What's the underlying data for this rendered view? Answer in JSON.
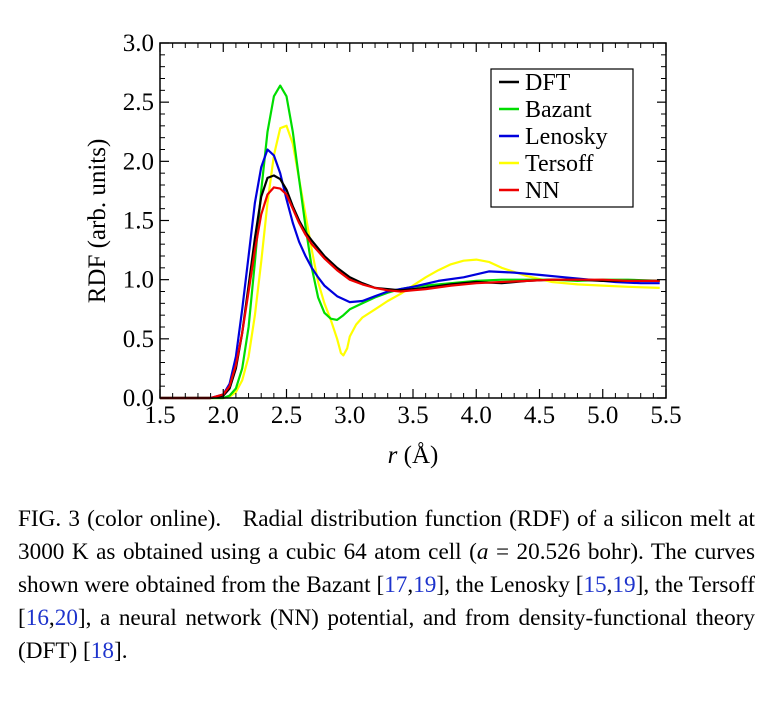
{
  "chart_data": {
    "type": "line",
    "xlabel_var": "r",
    "xlabel_unit": "(Å)",
    "ylabel": "RDF (arb. units)",
    "xlim": [
      1.5,
      5.5
    ],
    "ylim": [
      0.0,
      3.0
    ],
    "xticks": [
      "1.5",
      "2.0",
      "2.5",
      "3.0",
      "3.5",
      "4.0",
      "4.5",
      "5.0",
      "5.5"
    ],
    "yticks": [
      "0.0",
      "0.5",
      "1.0",
      "1.5",
      "2.0",
      "2.5",
      "3.0"
    ],
    "grid": false,
    "legend_position": "top-right",
    "series": [
      {
        "name": "DFT",
        "color": "#000000",
        "x": [
          1.5,
          1.9,
          2.0,
          2.05,
          2.1,
          2.15,
          2.2,
          2.25,
          2.3,
          2.35,
          2.4,
          2.45,
          2.5,
          2.55,
          2.6,
          2.65,
          2.7,
          2.8,
          2.9,
          3.0,
          3.1,
          3.2,
          3.3,
          3.4,
          3.5,
          3.6,
          3.8,
          4.0,
          4.2,
          4.4,
          4.6,
          4.8,
          5.0,
          5.2,
          5.45
        ],
        "y": [
          0.0,
          0.0,
          0.02,
          0.08,
          0.25,
          0.55,
          0.95,
          1.35,
          1.7,
          1.86,
          1.88,
          1.85,
          1.76,
          1.62,
          1.5,
          1.4,
          1.33,
          1.2,
          1.1,
          1.02,
          0.97,
          0.93,
          0.92,
          0.91,
          0.92,
          0.93,
          0.96,
          0.98,
          0.97,
          0.99,
          1.0,
          1.0,
          0.99,
          0.99,
          0.99
        ]
      },
      {
        "name": "Bazant",
        "color": "#00dd00",
        "x": [
          1.5,
          2.0,
          2.05,
          2.1,
          2.15,
          2.2,
          2.25,
          2.3,
          2.35,
          2.4,
          2.45,
          2.5,
          2.55,
          2.6,
          2.65,
          2.7,
          2.75,
          2.8,
          2.85,
          2.9,
          2.95,
          3.0,
          3.1,
          3.2,
          3.3,
          3.4,
          3.5,
          3.6,
          3.8,
          4.0,
          4.2,
          4.4,
          4.6,
          4.8,
          5.0,
          5.2,
          5.45
        ],
        "y": [
          0.0,
          0.0,
          0.02,
          0.08,
          0.25,
          0.6,
          1.15,
          1.75,
          2.25,
          2.55,
          2.64,
          2.55,
          2.25,
          1.85,
          1.45,
          1.1,
          0.85,
          0.72,
          0.67,
          0.66,
          0.7,
          0.75,
          0.8,
          0.85,
          0.89,
          0.92,
          0.94,
          0.95,
          0.97,
          0.99,
          1.0,
          1.0,
          1.0,
          0.99,
          1.0,
          1.0,
          0.99
        ]
      },
      {
        "name": "Lenosky",
        "color": "#0000dd",
        "x": [
          1.5,
          1.9,
          2.0,
          2.05,
          2.1,
          2.15,
          2.2,
          2.25,
          2.3,
          2.35,
          2.4,
          2.45,
          2.5,
          2.55,
          2.6,
          2.65,
          2.7,
          2.75,
          2.8,
          2.9,
          3.0,
          3.1,
          3.2,
          3.3,
          3.4,
          3.5,
          3.7,
          3.9,
          4.1,
          4.3,
          4.5,
          4.7,
          4.9,
          5.1,
          5.3,
          5.45
        ],
        "y": [
          0.0,
          0.0,
          0.03,
          0.12,
          0.35,
          0.75,
          1.2,
          1.65,
          1.95,
          2.1,
          2.05,
          1.9,
          1.68,
          1.48,
          1.32,
          1.2,
          1.1,
          1.02,
          0.95,
          0.86,
          0.81,
          0.82,
          0.86,
          0.9,
          0.92,
          0.94,
          0.99,
          1.02,
          1.07,
          1.06,
          1.04,
          1.02,
          1.0,
          0.98,
          0.97,
          0.97
        ]
      },
      {
        "name": "Tersoff",
        "color": "#ffff00",
        "x": [
          1.5,
          2.0,
          2.05,
          2.1,
          2.15,
          2.2,
          2.25,
          2.3,
          2.35,
          2.4,
          2.45,
          2.5,
          2.55,
          2.6,
          2.65,
          2.7,
          2.75,
          2.8,
          2.85,
          2.9,
          2.93,
          2.95,
          2.98,
          3.0,
          3.05,
          3.1,
          3.2,
          3.3,
          3.4,
          3.5,
          3.6,
          3.7,
          3.8,
          3.9,
          4.0,
          4.1,
          4.2,
          4.4,
          4.6,
          4.8,
          5.0,
          5.2,
          5.45
        ],
        "y": [
          0.0,
          0.0,
          0.01,
          0.05,
          0.15,
          0.35,
          0.7,
          1.15,
          1.65,
          2.05,
          2.28,
          2.3,
          2.15,
          1.85,
          1.55,
          1.25,
          0.98,
          0.8,
          0.66,
          0.5,
          0.38,
          0.36,
          0.42,
          0.52,
          0.62,
          0.68,
          0.75,
          0.82,
          0.88,
          0.95,
          1.02,
          1.08,
          1.13,
          1.16,
          1.17,
          1.15,
          1.1,
          1.03,
          0.98,
          0.96,
          0.95,
          0.94,
          0.93
        ]
      },
      {
        "name": "NN",
        "color": "#ee0000",
        "x": [
          1.5,
          1.9,
          2.0,
          2.05,
          2.1,
          2.15,
          2.2,
          2.25,
          2.3,
          2.35,
          2.4,
          2.45,
          2.5,
          2.55,
          2.6,
          2.65,
          2.7,
          2.8,
          2.9,
          3.0,
          3.1,
          3.2,
          3.3,
          3.4,
          3.5,
          3.6,
          3.8,
          4.0,
          4.2,
          4.4,
          4.6,
          4.8,
          5.0,
          5.2,
          5.45
        ],
        "y": [
          0.0,
          0.0,
          0.03,
          0.1,
          0.28,
          0.55,
          0.9,
          1.25,
          1.55,
          1.72,
          1.78,
          1.77,
          1.72,
          1.6,
          1.48,
          1.38,
          1.3,
          1.18,
          1.08,
          1.0,
          0.96,
          0.93,
          0.91,
          0.9,
          0.91,
          0.92,
          0.95,
          0.97,
          0.98,
          0.99,
          1.0,
          1.0,
          1.0,
          0.99,
          0.99
        ]
      }
    ]
  },
  "caption": {
    "fig": "FIG. 3 (color online).",
    "p1": "Radial distribution function (RDF) of a silicon melt at 3000 K as obtained using a cubic 64 atom cell (",
    "a": "a",
    "p2": " = 20.526 bohr). The curves shown were obtained from the Bazant [",
    "c17": "17",
    "c19a": "19",
    "p3": "], the Lenosky [",
    "c15": "15",
    "c19b": "19",
    "p4": "], the Tersoff [",
    "c16": "16",
    "c20": "20",
    "p5": "], a neural network (NN) potential, and from density-functional theory (DFT) [",
    "c18": "18",
    "p6": "]."
  }
}
